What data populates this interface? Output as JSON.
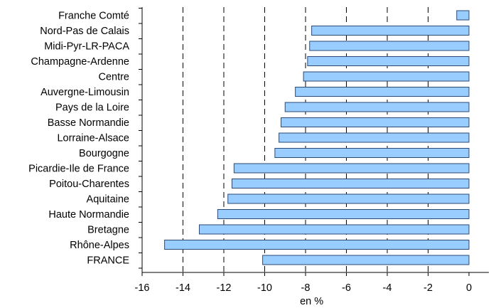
{
  "chart_data": {
    "type": "bar",
    "orientation": "horizontal",
    "categories": [
      "Franche Comté",
      "Nord-Pas de Calais",
      "Midi-Pyr-LR-PACA",
      "Champagne-Ardenne",
      "Centre",
      "Auvergne-Limousin",
      "Pays de la Loire",
      "Basse Normandie",
      "Lorraine-Alsace",
      "Bourgogne",
      "Picardie-Ile de France",
      "Poitou-Charentes",
      "Aquitaine",
      "Haute Normandie",
      "Bretagne",
      "Rhône-Alpes",
      "FRANCE"
    ],
    "values": [
      -0.6,
      -7.7,
      -7.8,
      -7.9,
      -8.1,
      -8.5,
      -9.0,
      -9.2,
      -9.3,
      -9.5,
      -11.5,
      -11.6,
      -11.8,
      -12.3,
      -13.2,
      -14.9,
      -10.1
    ],
    "title": "",
    "xlabel": "en %",
    "ylabel": "",
    "xlim": [
      -16,
      0
    ],
    "ticks": [
      -16,
      -14,
      -12,
      -10,
      -8,
      -6,
      -4,
      -2,
      0
    ],
    "tick_labels": [
      "-16",
      "-14",
      "-12",
      "-10",
      "-8",
      "-6",
      "-4",
      "-2",
      "0"
    ],
    "grid": "dashed vertical",
    "legend": "none",
    "colors": {
      "bar_fill": "#99ccff",
      "bar_stroke": "#2a4a7a",
      "axis": "#000000",
      "grid": "#000000"
    }
  }
}
